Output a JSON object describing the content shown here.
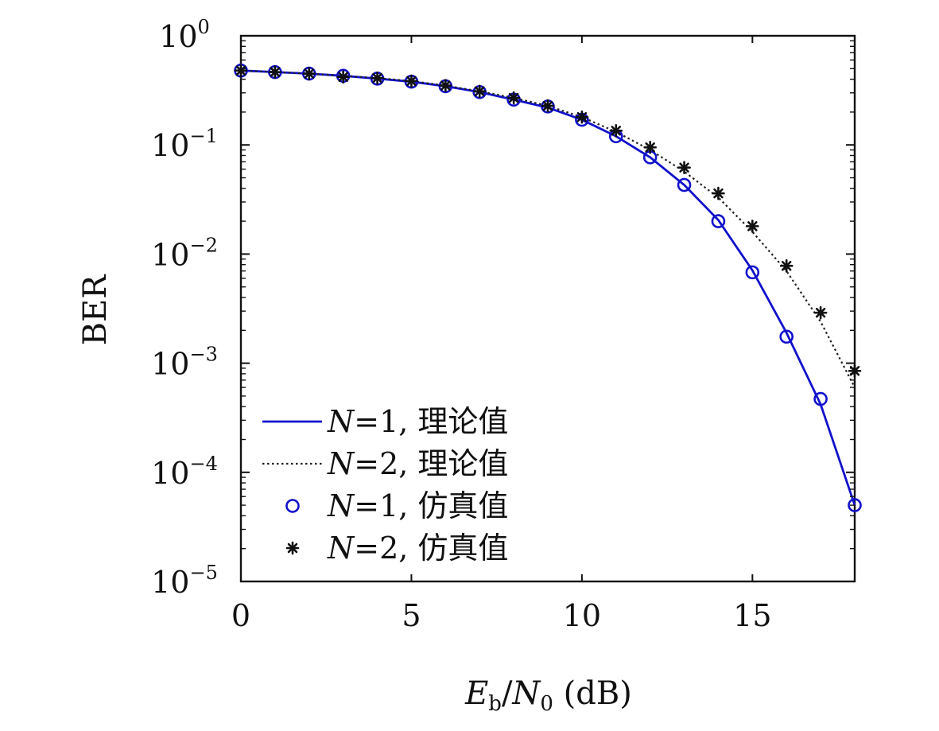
{
  "chart_data": {
    "type": "line",
    "title": "",
    "xlabel_main": "E",
    "xlabel_main_sub": "b",
    "xlabel_sep": "/",
    "xlabel_den": "N",
    "xlabel_den_sub": "0",
    "xlabel_unit": " (dB)",
    "ylabel": "BER",
    "xlim": [
      0,
      18
    ],
    "ylim": [
      1e-05,
      1
    ],
    "yscale": "log",
    "xticks": [
      0,
      5,
      10,
      15
    ],
    "xtick_labels": [
      "0",
      "5",
      "10",
      "15"
    ],
    "yticks": [
      1,
      0.1,
      0.01,
      0.001,
      0.0001,
      1e-05
    ],
    "ytick_base": "10",
    "ytick_exponents": [
      "0",
      "−1",
      "−2",
      "−3",
      "−4",
      "−5"
    ],
    "legend_position": "bottom-left",
    "series": [
      {
        "name": "N=1, 理论值",
        "name_var": "N",
        "name_rest": "=1, 理论值",
        "kind": "line",
        "style": "solid",
        "color": "#1111cc",
        "x": [
          0,
          1,
          2,
          3,
          4,
          5,
          6,
          7,
          8,
          9,
          10,
          11,
          12,
          13,
          14,
          15,
          16,
          17,
          18
        ],
        "y": [
          0.48,
          0.465,
          0.45,
          0.43,
          0.405,
          0.38,
          0.345,
          0.305,
          0.26,
          0.22,
          0.17,
          0.12,
          0.077,
          0.043,
          0.0205,
          0.0071,
          0.0019,
          0.00042,
          5e-05
        ]
      },
      {
        "name": "N=2, 理论值",
        "name_var": "N",
        "name_rest": "=2, 理论值",
        "kind": "line",
        "style": "dotted",
        "color": "#222222",
        "x": [
          0,
          1,
          2,
          3,
          4,
          5,
          6,
          7,
          8,
          9,
          10,
          11,
          12,
          13,
          14,
          15,
          16,
          17,
          18
        ],
        "y": [
          0.48,
          0.465,
          0.45,
          0.43,
          0.41,
          0.385,
          0.35,
          0.31,
          0.27,
          0.228,
          0.18,
          0.132,
          0.09,
          0.057,
          0.033,
          0.016,
          0.007,
          0.0024,
          0.0006
        ]
      },
      {
        "name": "N=1, 仿真值",
        "name_var": "N",
        "name_rest": "=1, 仿真值",
        "kind": "scatter",
        "marker": "circle",
        "color": "#1111cc",
        "x": [
          0,
          1,
          2,
          3,
          4,
          5,
          6,
          7,
          8,
          9,
          10,
          11,
          12,
          13,
          14,
          15,
          16,
          17,
          18
        ],
        "y": [
          0.48,
          0.465,
          0.45,
          0.43,
          0.405,
          0.38,
          0.345,
          0.305,
          0.26,
          0.225,
          0.17,
          0.12,
          0.077,
          0.043,
          0.02,
          0.0068,
          0.00175,
          0.00047,
          5e-05
        ]
      },
      {
        "name": "N=2, 仿真值",
        "name_var": "N",
        "name_rest": "=2, 仿真值",
        "kind": "scatter",
        "marker": "asterisk",
        "color": "#111111",
        "x": [
          0,
          1,
          2,
          3,
          4,
          5,
          6,
          7,
          8,
          9,
          10,
          11,
          12,
          13,
          14,
          15,
          16,
          17,
          18
        ],
        "y": [
          0.48,
          0.465,
          0.45,
          0.42,
          0.41,
          0.385,
          0.35,
          0.31,
          0.27,
          0.228,
          0.18,
          0.135,
          0.095,
          0.062,
          0.036,
          0.018,
          0.0078,
          0.0029,
          0.00085
        ]
      }
    ]
  }
}
